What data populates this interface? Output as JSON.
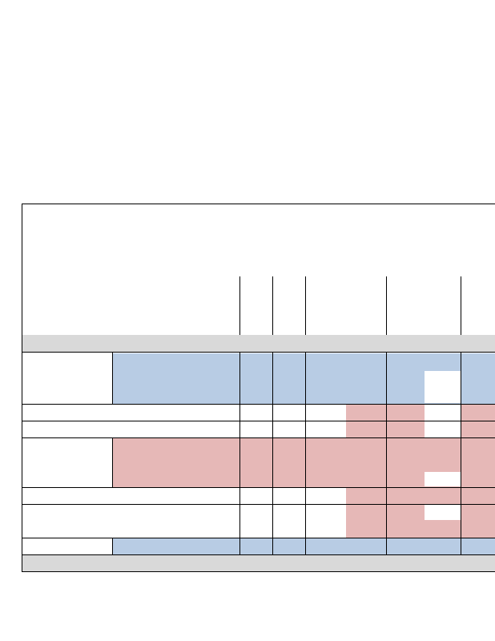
{
  "table": {
    "colors": {
      "blue": "#b8cce4",
      "red": "#e6b8b7",
      "gray": "#d9d9d9",
      "white": "#ffffff",
      "border": "#000000"
    },
    "header_row": {
      "text": ""
    },
    "rows": [
      {
        "name": "row-1-blue-fill"
      },
      {
        "name": "row-2-white-red"
      },
      {
        "name": "row-3-white-red"
      },
      {
        "name": "row-4-red-fill"
      },
      {
        "name": "row-5-white-red"
      },
      {
        "name": "row-6-white-red"
      },
      {
        "name": "row-7-blue-fill"
      }
    ]
  }
}
